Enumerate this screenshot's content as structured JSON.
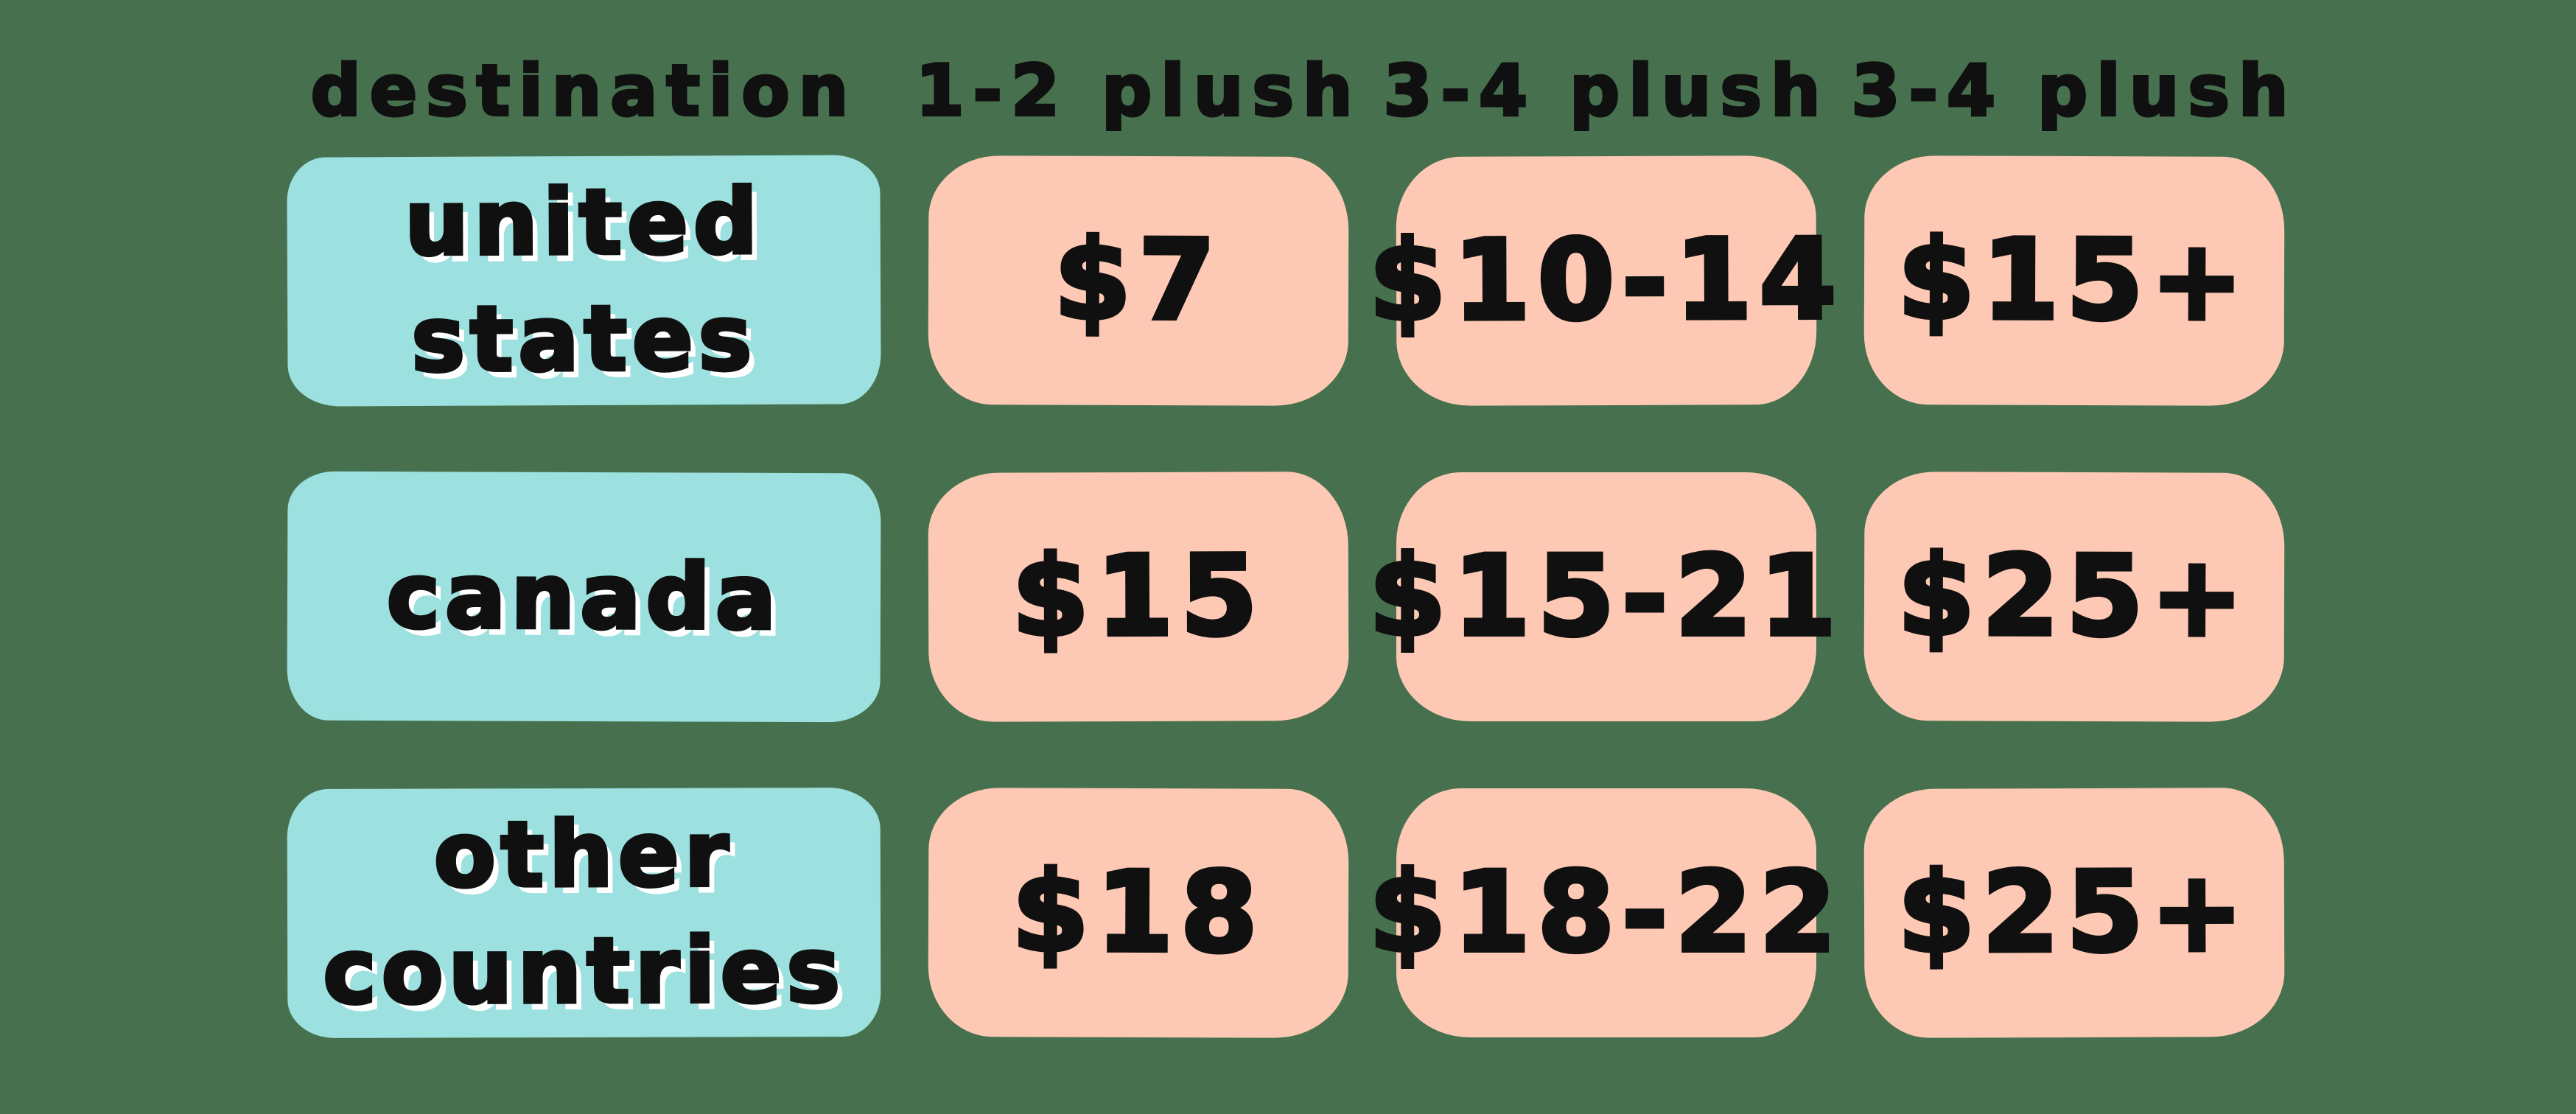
{
  "colors": {
    "background": "#47714e",
    "destination_box": "#9ce1df",
    "price_box": "#fec9b4",
    "text": "#101010",
    "text_shadow": "#ffffff"
  },
  "table": {
    "headers": [
      "destination",
      "1-2 plush",
      "3-4 plush",
      "3-4 plush"
    ],
    "rows": [
      {
        "lines": [
          "united",
          "states"
        ],
        "prices": [
          "$7",
          "$10-14",
          "$15+"
        ]
      },
      {
        "lines": [
          "canada"
        ],
        "prices": [
          "$15",
          "$15-21",
          "$25+"
        ]
      },
      {
        "lines": [
          "other",
          "countries"
        ],
        "prices": [
          "$18",
          "$18-22",
          "$25+"
        ]
      }
    ]
  },
  "chart_data": {
    "type": "table",
    "columns": [
      "destination",
      "1-2 plush",
      "3-4 plush",
      "3-4 plush"
    ],
    "rows": [
      [
        "united states",
        "$7",
        "$10-14",
        "$15+"
      ],
      [
        "canada",
        "$15",
        "$15-21",
        "$25+"
      ],
      [
        "other countries",
        "$18",
        "$18-22",
        "$25+"
      ]
    ],
    "title": "",
    "notes": "shipping price table; destination column teal, price columns salmon, green background"
  }
}
